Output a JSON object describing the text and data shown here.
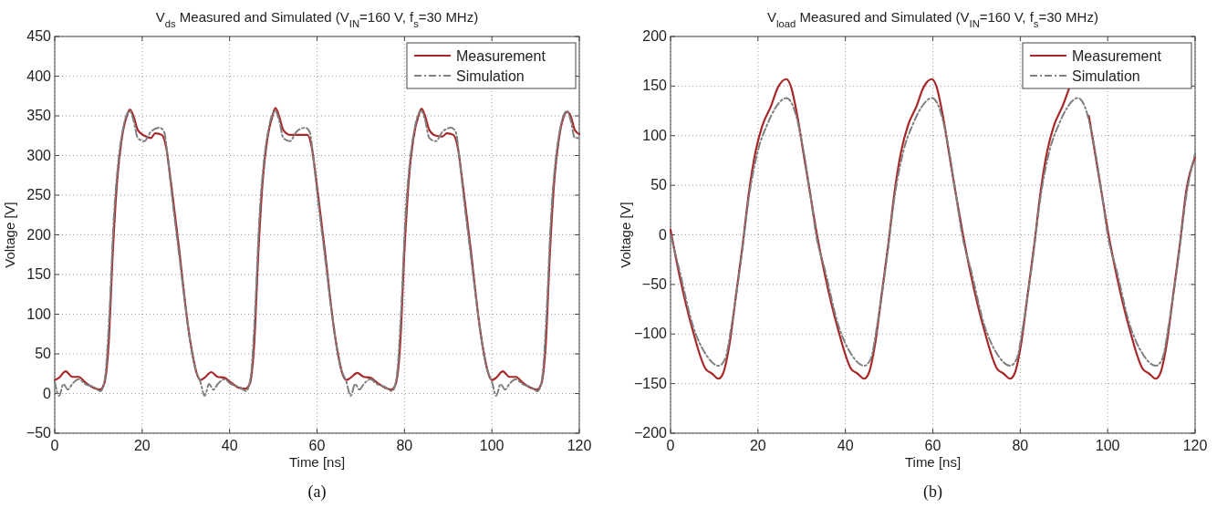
{
  "chart_data": [
    {
      "type": "line",
      "title": "V$_{ds}$ Measured and Simulated (V$_{IN}$=160 V, f$_{s}$=30 MHz)",
      "xlabel": "Time [ns]",
      "ylabel": "Voltage [V]",
      "xlim": [
        0,
        120
      ],
      "ylim": [
        -50,
        450
      ],
      "xticks": [
        0,
        20,
        40,
        60,
        80,
        100,
        120
      ],
      "yticks": [
        -50,
        0,
        50,
        100,
        150,
        200,
        250,
        300,
        350,
        400,
        450
      ],
      "grid": true,
      "legend": "top right",
      "annotations": [
        "(a)"
      ],
      "series": [
        {
          "name": "Measurement",
          "color": "#a8282a",
          "line_style": "solid",
          "x": [
            0,
            1,
            2.5,
            4,
            5.5,
            7,
            9,
            10.3,
            11.3,
            12.3,
            13.3,
            14.3,
            15.3,
            16.5,
            17.2,
            18,
            19,
            20.5,
            22,
            23,
            24.5,
            25.5,
            26.5,
            27.5,
            28.5,
            29.5,
            30.5,
            31.5,
            32.5,
            33.3,
            34.3,
            35.8,
            37.3,
            38.8,
            40.3,
            42.3,
            43.6,
            44.6,
            45.6,
            46.6,
            47.6,
            48.6,
            49.8,
            50.5,
            51.3,
            52.3,
            53.8,
            55.3,
            56.3,
            57.8,
            58.8,
            59.8,
            60.8,
            61.8,
            62.8,
            63.8,
            64.8,
            65.8,
            66.7,
            67.7,
            69.2,
            70.7,
            72.2,
            73.7,
            75.7,
            77,
            78,
            79,
            80,
            81,
            82,
            83.2,
            83.9,
            84.7,
            85.7,
            87.2,
            88.7,
            89.7,
            91.2,
            92.2,
            93.2,
            94.2,
            95.2,
            96.2,
            97.2,
            98.2,
            99.2,
            100,
            101,
            102.5,
            104,
            105.5,
            107,
            109,
            110.3,
            111.3,
            112.3,
            113.3,
            114.3,
            115.3,
            116.5,
            117.2,
            118,
            119,
            120
          ],
          "values": [
            17,
            20,
            28,
            21,
            21,
            14,
            7,
            5,
            12,
            60,
            180,
            270,
            320,
            350,
            358,
            350,
            332,
            325,
            322,
            328,
            326,
            310,
            270,
            225,
            180,
            130,
            85,
            50,
            25,
            17,
            20,
            27,
            21,
            20,
            14,
            7,
            6,
            12,
            60,
            180,
            270,
            320,
            350,
            360,
            350,
            332,
            326,
            326,
            326,
            326,
            310,
            270,
            225,
            180,
            130,
            85,
            50,
            25,
            17,
            20,
            26,
            21,
            20,
            14,
            7,
            5,
            12,
            60,
            180,
            270,
            320,
            350,
            359,
            350,
            332,
            325,
            324,
            328,
            326,
            310,
            270,
            225,
            180,
            130,
            85,
            50,
            25,
            17,
            20,
            28,
            21,
            21,
            14,
            7,
            5,
            12,
            60,
            180,
            270,
            320,
            350,
            355,
            350,
            332,
            327
          ]
        },
        {
          "name": "Simulation",
          "color": "#7f7f7f",
          "line_style": "dashed",
          "x": [
            0,
            1,
            2,
            3,
            4,
            5.5,
            7,
            9,
            10.5,
            11.5,
            12.5,
            13.5,
            14.5,
            15.5,
            16.5,
            17.2,
            18,
            19,
            20.5,
            22,
            24,
            25,
            26,
            27,
            28,
            29,
            30,
            31,
            32,
            33.3,
            34.3,
            35.3,
            36.3,
            37.3,
            38.8,
            40.3,
            42.3,
            43.8,
            44.8,
            45.8,
            46.8,
            47.8,
            48.8,
            49.8,
            50.5,
            51.3,
            52.3,
            53.8,
            55.3,
            57.3,
            58.3,
            59.3,
            60.3,
            61.3,
            62.3,
            63.3,
            64.3,
            65.3,
            66.7,
            67.7,
            68.7,
            69.7,
            70.7,
            72.2,
            73.7,
            75.7,
            77.2,
            78.2,
            79.2,
            80.2,
            81.2,
            82.2,
            83.2,
            83.9,
            84.7,
            85.7,
            87.2,
            88.7,
            90.7,
            91.7,
            92.7,
            93.7,
            94.7,
            95.7,
            96.7,
            97.7,
            98.7,
            100,
            101,
            102,
            103,
            104,
            105.5,
            107,
            109,
            110.5,
            111.5,
            112.5,
            113.5,
            114.5,
            115.5,
            116.5,
            117.2,
            118,
            119,
            120
          ],
          "values": [
            15,
            -3,
            12,
            5,
            12,
            18,
            12,
            8,
            3,
            20,
            100,
            220,
            290,
            330,
            352,
            356,
            345,
            322,
            318,
            330,
            335,
            330,
            290,
            240,
            195,
            150,
            105,
            65,
            35,
            15,
            -3,
            12,
            5,
            12,
            18,
            12,
            8,
            3,
            20,
            100,
            220,
            290,
            330,
            352,
            356,
            345,
            322,
            318,
            330,
            335,
            330,
            290,
            240,
            195,
            150,
            105,
            65,
            35,
            15,
            -3,
            12,
            5,
            12,
            18,
            12,
            8,
            3,
            20,
            100,
            220,
            290,
            330,
            352,
            356,
            345,
            322,
            318,
            330,
            335,
            330,
            290,
            240,
            195,
            150,
            105,
            65,
            35,
            15,
            -3,
            12,
            5,
            12,
            18,
            12,
            8,
            3,
            20,
            100,
            220,
            290,
            330,
            352,
            356,
            345,
            322,
            322
          ]
        }
      ]
    },
    {
      "type": "line",
      "title": "V$_{load}$ Measured and Simulated (V$_{IN}$=160 V, f$_{s}$=30 MHz)",
      "xlabel": "Time [ns]",
      "ylabel": "Voltage [V]",
      "xlim": [
        0,
        120
      ],
      "ylim": [
        -200,
        200
      ],
      "xticks": [
        0,
        20,
        40,
        60,
        80,
        100,
        120
      ],
      "yticks": [
        -200,
        -150,
        -100,
        -50,
        0,
        50,
        100,
        150,
        200
      ],
      "grid": true,
      "legend": "top right",
      "annotations": [
        "(b)"
      ],
      "series": [
        {
          "name": "Measurement",
          "color": "#a8282a",
          "line_style": "solid",
          "x": [
            0,
            2,
            5,
            8,
            9.5,
            11,
            12,
            13.5,
            15,
            16.5,
            18,
            19.5,
            21,
            23,
            24.5,
            26.5,
            27.5,
            29,
            30.5,
            32,
            33.3,
            35.3,
            38.3,
            41.3,
            42.8,
            44.3,
            45.3,
            46.8,
            48.3,
            49.8,
            51.3,
            52.8,
            54.3,
            56.3,
            57.8,
            59.8,
            60.8,
            62.3,
            63.8,
            65.3,
            66.7,
            68.7,
            71.7,
            74.7,
            76.2,
            77.7,
            78.7,
            80.2,
            81.7,
            83.2,
            84.7,
            86.2,
            87.7,
            89.7,
            91.2,
            93.2,
            94.2,
            95.7,
            97.2,
            98.7,
            100,
            102,
            105,
            108,
            109.5,
            111,
            112,
            113.5,
            115,
            116.5,
            118,
            120
          ],
          "values": [
            5,
            -40,
            -95,
            -135,
            -140,
            -145,
            -140,
            -110,
            -60,
            -10,
            45,
            85,
            110,
            130,
            148,
            157,
            150,
            120,
            80,
            40,
            5,
            -40,
            -95,
            -135,
            -140,
            -145,
            -140,
            -110,
            -60,
            -10,
            45,
            85,
            110,
            130,
            148,
            157,
            150,
            120,
            80,
            40,
            5,
            -40,
            -95,
            -135,
            -140,
            -145,
            -140,
            -110,
            -60,
            -10,
            45,
            85,
            110,
            130,
            148,
            null,
            null,
            120,
            80,
            40,
            5,
            -40,
            -95,
            -135,
            -140,
            -145,
            -140,
            -110,
            -60,
            -10,
            45,
            78
          ]
        },
        {
          "name": "Simulation",
          "color": "#7f7f7f",
          "line_style": "dashed",
          "x": [
            0,
            2,
            5,
            8,
            11,
            12.5,
            14,
            16,
            18,
            20,
            22,
            24,
            26.5,
            28,
            30,
            32,
            33.3,
            35.3,
            38.3,
            41.3,
            44.3,
            45.8,
            47.3,
            49.3,
            51.3,
            53.3,
            55.3,
            57.3,
            59.8,
            61.3,
            63.3,
            65.3,
            66.7,
            68.7,
            71.7,
            74.7,
            77.7,
            79.2,
            80.7,
            82.7,
            84.7,
            86.7,
            88.7,
            90.7,
            93.2,
            94.7,
            96.7,
            98.7,
            100,
            102,
            105,
            108,
            111,
            112.5,
            114,
            116,
            118,
            120
          ],
          "values": [
            0,
            -35,
            -90,
            -120,
            -132,
            -125,
            -90,
            -30,
            40,
            85,
            110,
            128,
            138,
            130,
            95,
            40,
            0,
            -35,
            -90,
            -120,
            -132,
            -125,
            -90,
            -30,
            40,
            85,
            110,
            128,
            138,
            130,
            95,
            40,
            0,
            -35,
            -90,
            -120,
            -132,
            -125,
            -90,
            -30,
            40,
            85,
            110,
            128,
            138,
            130,
            95,
            40,
            0,
            -35,
            -90,
            -120,
            -132,
            -125,
            -90,
            -30,
            40,
            82
          ]
        }
      ]
    }
  ]
}
